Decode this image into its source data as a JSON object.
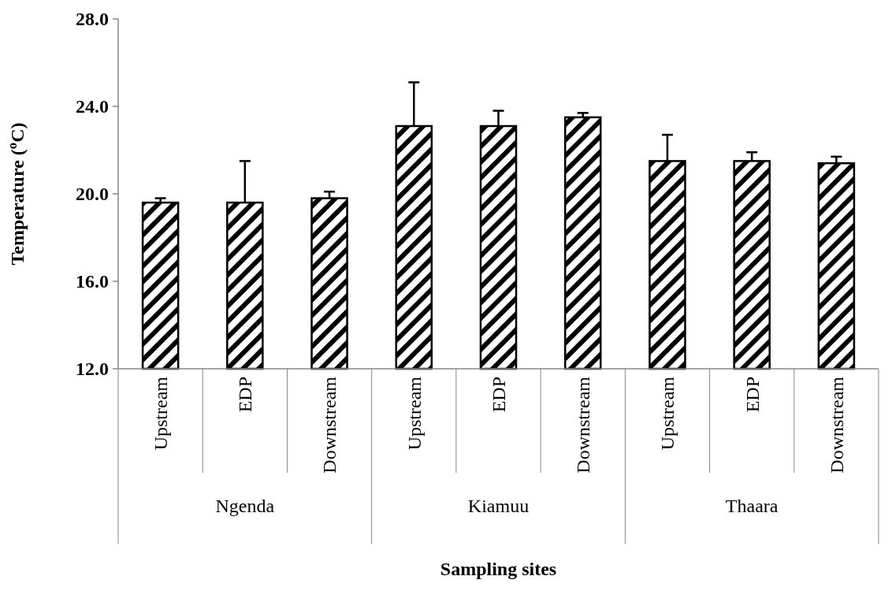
{
  "chart_data": {
    "type": "bar",
    "xlabel": "Sampling sites",
    "ylabel": "Temperature ($^{o}$C)",
    "categories": [
      "Upstream",
      "EDP",
      "Downstream",
      "Upstream",
      "EDP",
      "Downstream",
      "Upstream",
      "EDP",
      "Downstream"
    ],
    "values": [
      19.6,
      19.6,
      19.8,
      23.1,
      23.1,
      23.5,
      21.5,
      21.5,
      21.4
    ],
    "errors": [
      [
        19.6,
        19.8
      ],
      [
        19.6,
        21.5
      ],
      [
        19.8,
        20.1
      ],
      [
        23.1,
        25.1
      ],
      [
        23.1,
        23.8
      ],
      [
        23.5,
        23.7
      ],
      [
        21.5,
        22.7
      ],
      [
        21.5,
        21.9
      ],
      [
        21.4,
        21.7
      ]
    ],
    "color": "#000000",
    "annotations": [
      "Ngenda",
      "Kiamuu",
      "Thaara"
    ],
    "ylim": [
      12,
      28
    ],
    "yticks": [
      {
        "value": 12,
        "label": "12.0"
      },
      {
        "value": 16,
        "label": "16.0"
      },
      {
        "value": 20,
        "label": "20.0"
      },
      {
        "value": 24,
        "label": "24.0"
      },
      {
        "value": 28,
        "label": "28.0"
      }
    ],
    "grid": false
  }
}
